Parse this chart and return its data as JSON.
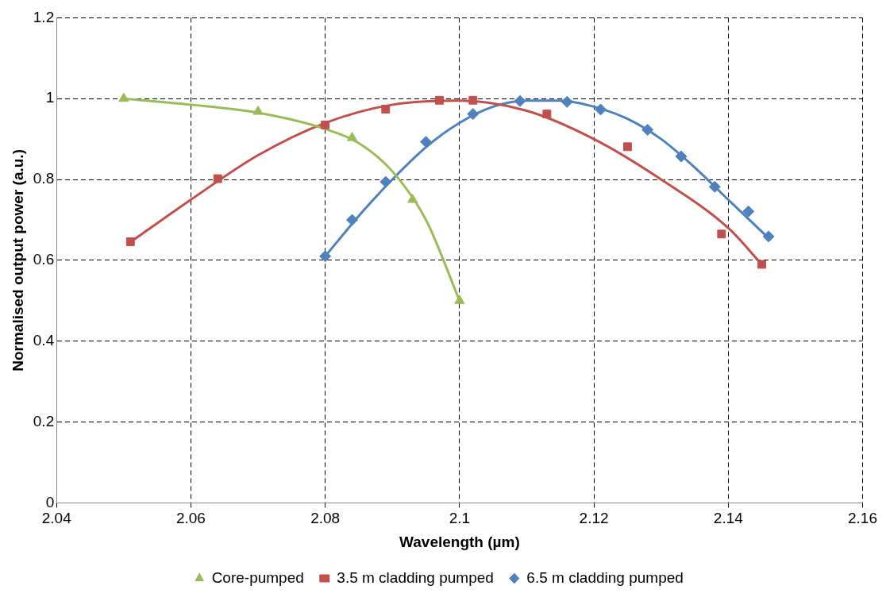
{
  "chart_data": {
    "type": "scatter",
    "xlabel": "Wavelength (µm)",
    "ylabel": "Normalised output power (a.u.)",
    "xlim": [
      2.04,
      2.16
    ],
    "xticks": [
      2.04,
      2.06,
      2.08,
      {
        "value": 2.1,
        "label": "2.1"
      },
      2.12,
      2.14,
      2.16
    ],
    "ylim": [
      0,
      1.2
    ],
    "yticks": [
      0,
      0.2,
      0.4,
      0.6,
      0.8,
      {
        "value": 1,
        "label": "1"
      },
      1.2
    ],
    "grid": true,
    "legend": "bottom",
    "series": [
      {
        "type": "line",
        "color": "#9bbb59",
        "marker": "none",
        "x": [
          2.05,
          2.06,
          2.07,
          2.08,
          2.085,
          2.09,
          2.095,
          2.1
        ],
        "values": [
          1.0,
          0.985,
          0.965,
          0.925,
          0.89,
          0.82,
          0.7,
          0.5
        ]
      },
      {
        "type": "line",
        "color": "#c0504d",
        "marker": "none",
        "x": [
          2.051,
          2.06,
          2.07,
          2.08,
          2.09,
          2.1,
          2.11,
          2.12,
          2.13,
          2.14,
          2.145
        ],
        "values": [
          0.645,
          0.75,
          0.86,
          0.94,
          0.985,
          0.995,
          0.97,
          0.9,
          0.8,
          0.68,
          0.59
        ]
      },
      {
        "type": "line",
        "color": "#4f81bd",
        "marker": "none",
        "x": [
          2.08,
          2.085,
          2.09,
          2.095,
          2.1,
          2.105,
          2.11,
          2.115,
          2.12,
          2.125,
          2.13,
          2.135,
          2.14,
          2.146
        ],
        "values": [
          0.61,
          0.71,
          0.8,
          0.88,
          0.94,
          0.98,
          0.995,
          0.995,
          0.98,
          0.95,
          0.9,
          0.83,
          0.75,
          0.655
        ]
      },
      {
        "name": "Core-pumped",
        "type": "scatter",
        "color": "#9bbb59",
        "marker": "triangle",
        "x": [
          2.05,
          2.07,
          2.084,
          2.093,
          2.1
        ],
        "values": [
          1.0,
          0.968,
          0.903,
          0.75,
          0.5
        ]
      },
      {
        "name": "3.5 m cladding pumped",
        "type": "scatter",
        "color": "#c0504d",
        "marker": "square",
        "x": [
          2.051,
          2.064,
          2.08,
          2.089,
          2.097,
          2.102,
          2.113,
          2.125,
          2.139,
          2.145
        ],
        "values": [
          0.646,
          0.802,
          0.935,
          0.974,
          0.996,
          0.996,
          0.962,
          0.881,
          0.665,
          0.59
        ]
      },
      {
        "name": "6.5 m cladding pumped",
        "type": "scatter",
        "color": "#4f81bd",
        "marker": "diamond",
        "x": [
          2.08,
          2.084,
          2.089,
          2.095,
          2.102,
          2.109,
          2.116,
          2.121,
          2.128,
          2.133,
          2.138,
          2.143,
          2.146
        ],
        "values": [
          0.61,
          0.7,
          0.794,
          0.893,
          0.962,
          0.994,
          0.992,
          0.973,
          0.923,
          0.857,
          0.782,
          0.721,
          0.659
        ]
      }
    ]
  }
}
